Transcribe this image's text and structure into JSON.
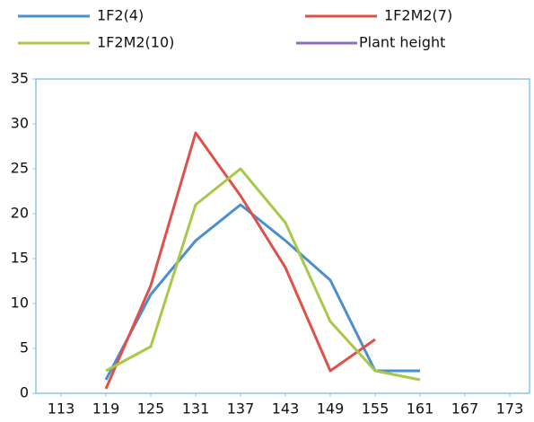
{
  "chart_data": {
    "type": "line",
    "x": [
      113,
      119,
      125,
      131,
      137,
      143,
      149,
      155,
      161,
      167,
      173
    ],
    "series": [
      {
        "name": "1F2(4)",
        "color": "#4a8fd0",
        "values": [
          null,
          1.5,
          11,
          17,
          21,
          17,
          12.6,
          2.5,
          2.5,
          null,
          null
        ]
      },
      {
        "name": "1F2M2(7)",
        "color": "#e0504a",
        "values": [
          null,
          0.5,
          12,
          29,
          22,
          14,
          2.5,
          6,
          null,
          null,
          null
        ]
      },
      {
        "name": "1F2M2(10)",
        "color": "#a8c84a",
        "values": [
          null,
          2.5,
          5.2,
          21,
          25,
          19,
          8,
          2.5,
          1.5,
          null,
          null
        ]
      },
      {
        "name": "Plant height",
        "color": "#8a6cc0",
        "values": [
          null,
          null,
          null,
          null,
          null,
          null,
          null,
          null,
          null,
          null,
          null
        ]
      }
    ],
    "xlim": [
      113,
      173
    ],
    "xticks": [
      113,
      119,
      125,
      131,
      137,
      143,
      149,
      155,
      161,
      167,
      173
    ],
    "ylim": [
      0,
      35
    ],
    "yticks": [
      0,
      5,
      10,
      15,
      20,
      25,
      30,
      35
    ],
    "grid": false
  }
}
